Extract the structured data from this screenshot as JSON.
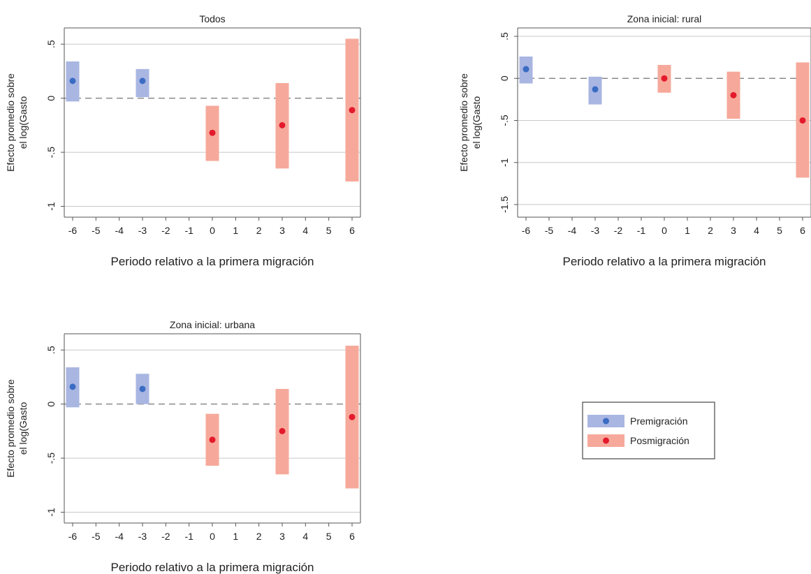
{
  "colors": {
    "pre_fill": "#a9b6e2",
    "pre_point": "#3b6cc4",
    "post_fill": "#f6a99a",
    "post_point": "#e41a2c",
    "grid": "#c8c8c8",
    "zero_line": "#8a8a8a",
    "frame": "#555555"
  },
  "legend": {
    "items": [
      {
        "label": "Premigración",
        "kind": "pre"
      },
      {
        "label": "Posmigración",
        "kind": "post"
      }
    ]
  },
  "chart_data": [
    {
      "type": "scatter",
      "title": "Todos",
      "xlabel": "Periodo relativo a la primera migración",
      "ylabel": [
        "Efecto promedio sobre",
        "el log(Gasto"
      ],
      "xlim": [
        -6,
        6
      ],
      "ylim": [
        -1.1,
        0.65
      ],
      "xticks": [
        -6,
        -5,
        -4,
        -3,
        -2,
        -1,
        0,
        1,
        2,
        3,
        4,
        5,
        6
      ],
      "yticks": [
        0.5,
        0,
        -0.5,
        -1
      ],
      "ytick_labels": [
        ".5",
        "0",
        "-.5",
        "-1"
      ],
      "grid": true,
      "series": [
        {
          "name": "Premigración",
          "kind": "pre",
          "x": [
            -6,
            -3
          ],
          "estimate": [
            0.16,
            0.16
          ],
          "ci_low": [
            -0.03,
            0.01
          ],
          "ci_high": [
            0.34,
            0.27
          ]
        },
        {
          "name": "Posmigración",
          "kind": "post",
          "x": [
            0,
            3,
            6
          ],
          "estimate": [
            -0.32,
            -0.25,
            -0.11
          ],
          "ci_low": [
            -0.58,
            -0.65,
            -0.77
          ],
          "ci_high": [
            -0.07,
            0.14,
            0.55
          ]
        }
      ]
    },
    {
      "type": "scatter",
      "title": "Zona inicial: rural",
      "xlabel": "Periodo relativo a la primera migración",
      "ylabel": [
        "Efecto promedio sobre",
        "el log(Gasto"
      ],
      "xlim": [
        -6,
        6
      ],
      "ylim": [
        -1.65,
        0.6
      ],
      "xticks": [
        -6,
        -5,
        -4,
        -3,
        -2,
        -1,
        0,
        1,
        2,
        3,
        4,
        5,
        6
      ],
      "yticks": [
        0.5,
        0,
        -0.5,
        -1,
        -1.5
      ],
      "ytick_labels": [
        ".5",
        "0",
        "-.5",
        "-1",
        "-1.5"
      ],
      "grid": true,
      "series": [
        {
          "name": "Premigración",
          "kind": "pre",
          "x": [
            -6,
            -3
          ],
          "estimate": [
            0.11,
            -0.13
          ],
          "ci_low": [
            -0.06,
            -0.31
          ],
          "ci_high": [
            0.26,
            0.02
          ]
        },
        {
          "name": "Posmigración",
          "kind": "post",
          "x": [
            0,
            3,
            6
          ],
          "estimate": [
            0.0,
            -0.2,
            -0.5
          ],
          "ci_low": [
            -0.17,
            -0.48,
            -1.18
          ],
          "ci_high": [
            0.16,
            0.08,
            0.19
          ]
        }
      ]
    },
    {
      "type": "scatter",
      "title": "Zona inicial: urbana",
      "xlabel": "Periodo relativo a la primera migración",
      "ylabel": [
        "Efecto promedio sobre",
        "el log(Gasto"
      ],
      "xlim": [
        -6,
        6
      ],
      "ylim": [
        -1.1,
        0.65
      ],
      "xticks": [
        -6,
        -5,
        -4,
        -3,
        -2,
        -1,
        0,
        1,
        2,
        3,
        4,
        5,
        6
      ],
      "yticks": [
        0.5,
        0,
        -0.5,
        -1
      ],
      "ytick_labels": [
        ".5",
        "0",
        "-.5",
        "-1"
      ],
      "grid": true,
      "series": [
        {
          "name": "Premigración",
          "kind": "pre",
          "x": [
            -6,
            -3
          ],
          "estimate": [
            0.16,
            0.14
          ],
          "ci_low": [
            -0.03,
            0.0
          ],
          "ci_high": [
            0.34,
            0.28
          ]
        },
        {
          "name": "Posmigración",
          "kind": "post",
          "x": [
            0,
            3,
            6
          ],
          "estimate": [
            -0.33,
            -0.25,
            -0.12
          ],
          "ci_low": [
            -0.57,
            -0.65,
            -0.78
          ],
          "ci_high": [
            -0.09,
            0.14,
            0.54
          ]
        }
      ]
    }
  ]
}
